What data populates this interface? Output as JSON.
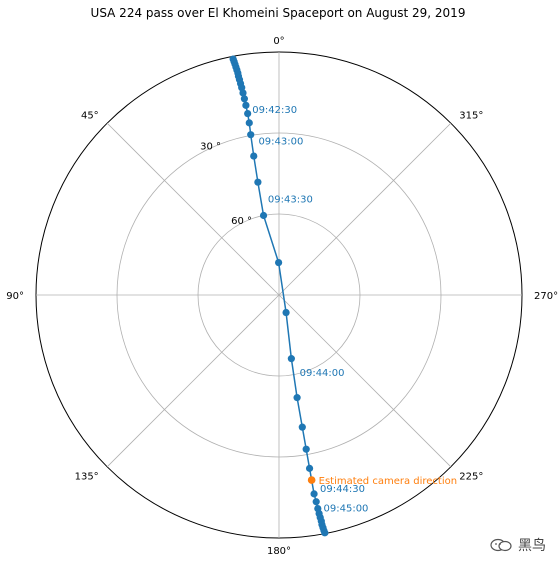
{
  "chart_data": {
    "type": "polar-scatter-line",
    "title": "USA 224 pass over El Khomeini Spaceport on August 29, 2019",
    "theta_zero": "N",
    "theta_direction": "counterclockwise",
    "angular_ticks": [
      {
        "deg": 0,
        "label": "0°"
      },
      {
        "deg": 45,
        "label": "45°"
      },
      {
        "deg": 90,
        "label": "90°"
      },
      {
        "deg": 135,
        "label": "135°"
      },
      {
        "deg": 180,
        "label": "180°"
      },
      {
        "deg": 225,
        "label": "225°"
      },
      {
        "deg": 270,
        "label": "270°"
      },
      {
        "deg": 315,
        "label": "315°"
      }
    ],
    "radial_axis": {
      "variable": "elevation",
      "inverted": true,
      "range": [
        90,
        0
      ],
      "ticks": [
        {
          "value": 30,
          "label": "30 °"
        },
        {
          "value": 60,
          "label": "60 °"
        }
      ]
    },
    "colors": {
      "track": "#1f77b4",
      "camera": "#ff7f0e",
      "grid": "#b0b0b0"
    },
    "series": [
      {
        "name": "USA 224 track",
        "points": [
          {
            "azimuth": 11.0,
            "elevation": 1.0
          },
          {
            "azimuth": 10.9,
            "elevation": 2.0
          },
          {
            "azimuth": 10.8,
            "elevation": 3.0
          },
          {
            "azimuth": 10.7,
            "elevation": 4.1
          },
          {
            "azimuth": 10.6,
            "elevation": 5.2
          },
          {
            "azimuth": 10.5,
            "elevation": 6.4
          },
          {
            "azimuth": 10.5,
            "elevation": 7.6
          },
          {
            "azimuth": 10.4,
            "elevation": 8.9
          },
          {
            "azimuth": 10.3,
            "elevation": 10.4
          },
          {
            "azimuth": 10.2,
            "elevation": 12.0
          },
          {
            "azimuth": 10.1,
            "elevation": 14.0
          },
          {
            "azimuth": 10.0,
            "elevation": 16.2
          },
          {
            "azimuth": 9.9,
            "elevation": 18.7
          },
          {
            "azimuth": 9.8,
            "elevation": 21.8
          },
          {
            "azimuth": 9.8,
            "elevation": 25.3
          },
          {
            "azimuth": 10.0,
            "elevation": 29.7
          },
          {
            "azimuth": 10.3,
            "elevation": 37.7
          },
          {
            "azimuth": 10.6,
            "elevation": 47.5
          },
          {
            "azimuth": 11.0,
            "elevation": 60.0
          },
          {
            "azimuth": 0.7,
            "elevation": 78.0
          },
          {
            "azimuth": 202.0,
            "elevation": 83.0
          },
          {
            "azimuth": 191.0,
            "elevation": 66.0
          },
          {
            "azimuth": 190.0,
            "elevation": 51.4
          },
          {
            "azimuth": 190.0,
            "elevation": 40.3
          },
          {
            "azimuth": 190.0,
            "elevation": 32.0
          },
          {
            "azimuth": 190.0,
            "elevation": 24.8
          },
          {
            "azimuth": 190.0,
            "elevation": 20.4
          },
          {
            "azimuth": 190.0,
            "elevation": 15.2
          },
          {
            "azimuth": 190.2,
            "elevation": 12.2
          },
          {
            "azimuth": 190.3,
            "elevation": 9.6
          },
          {
            "azimuth": 190.4,
            "elevation": 7.7
          },
          {
            "azimuth": 190.5,
            "elevation": 6.2
          },
          {
            "azimuth": 190.6,
            "elevation": 4.8
          },
          {
            "azimuth": 190.6,
            "elevation": 3.5
          },
          {
            "azimuth": 190.7,
            "elevation": 2.3
          },
          {
            "azimuth": 190.8,
            "elevation": 1.2
          },
          {
            "azimuth": 190.9,
            "elevation": 0.3
          }
        ]
      },
      {
        "name": "Estimated camera direction",
        "points": [
          {
            "azimuth": 190.0,
            "elevation": 20.4
          }
        ]
      }
    ],
    "annotations": [
      {
        "text": "09:42:30",
        "azimuth": 10.3,
        "elevation": 20.0,
        "color": "track"
      },
      {
        "text": "09:43:00",
        "azimuth": 10.1,
        "elevation": 31.8,
        "color": "track"
      },
      {
        "text": "09:43:30",
        "azimuth": 10.6,
        "elevation": 53.6,
        "color": "track"
      },
      {
        "text": "09:44:00",
        "azimuth": 190.0,
        "elevation": 61.0,
        "color": "track"
      },
      {
        "text": "09:44:30",
        "azimuth": 190.0,
        "elevation": 17.4,
        "color": "track"
      },
      {
        "text": "09:45:00",
        "azimuth": 190.0,
        "elevation": 10.0,
        "color": "track"
      },
      {
        "text": "Estimated camera direction",
        "azimuth": 190.0,
        "elevation": 20.4,
        "color": "camera"
      }
    ]
  },
  "watermark": {
    "text": "黑鸟"
  }
}
